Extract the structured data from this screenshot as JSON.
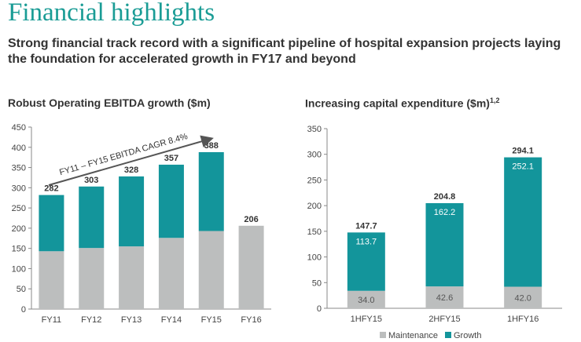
{
  "page": {
    "title": "Financial highlights",
    "subtitle": "Strong financial track record with a significant pipeline of hospital expansion projects laying the foundation for accelerated growth in FY17 and beyond"
  },
  "colors": {
    "title": "#1a9c95",
    "growth": "#13959b",
    "maintenance": "#bcbebe",
    "arrow": "#555555"
  },
  "chart_data": [
    {
      "type": "bar",
      "title": "Robust Operating EBITDA growth ($m)",
      "categories": [
        "FY11",
        "FY12",
        "FY13",
        "FY14",
        "FY15",
        "FY16"
      ],
      "series": [
        {
          "values": [
            143,
            151,
            155,
            176,
            193,
            206
          ]
        },
        {
          "values": [
            139,
            152,
            173,
            181,
            195,
            0
          ]
        }
      ],
      "totals": [
        "282",
        "303",
        "328",
        "357",
        "388",
        "206"
      ],
      "yticks": [
        0,
        50,
        100,
        150,
        200,
        250,
        300,
        350,
        400,
        450
      ],
      "ylim": [
        0,
        450
      ],
      "annotation": "FY11 – FY15 EBITDA CAGR 8.4%",
      "stacked": true,
      "grid": false
    },
    {
      "type": "bar",
      "title": "Increasing capital expenditure ($m)",
      "title_sup": "1,2",
      "categories": [
        "1HFY15",
        "2HFY15",
        "1HFY16"
      ],
      "series": [
        {
          "name": "Maintenance",
          "values": [
            34.0,
            42.6,
            42.0
          ],
          "labels": [
            "34.0",
            "42.6",
            "42.0"
          ]
        },
        {
          "name": "Growth",
          "values": [
            113.7,
            162.2,
            252.1
          ],
          "labels": [
            "113.7",
            "162.2",
            "252.1"
          ]
        }
      ],
      "totals": [
        "147.7",
        "204.8",
        "294.1"
      ],
      "yticks": [
        0,
        50,
        100,
        150,
        200,
        250,
        300,
        350
      ],
      "ylim": [
        0,
        350
      ],
      "legend": "bottom",
      "stacked": true,
      "grid": false
    }
  ]
}
